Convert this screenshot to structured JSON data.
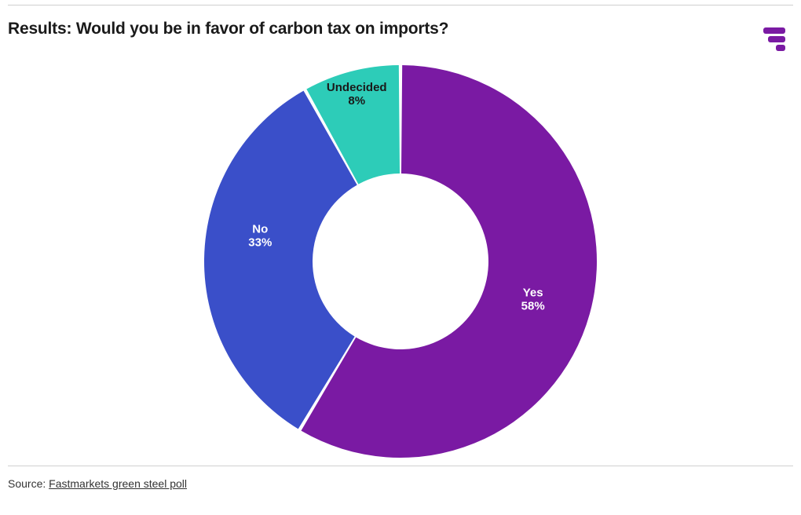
{
  "title": "Results: Would you be in favor of carbon tax on imports?",
  "chart": {
    "type": "donut",
    "start_angle_deg": 0,
    "outer_radius": 250,
    "inner_radius": 112,
    "gap_deg": 1.0,
    "background_color": "#ffffff",
    "slices": [
      {
        "label": "Yes",
        "value": 58,
        "color": "#7a1aa3",
        "text_color": "#ffffff",
        "label_offset_r": 175,
        "label_offset_angle_deg": 0
      },
      {
        "label": "No",
        "value": 33,
        "color": "#3a4fc9",
        "text_color": "#ffffff",
        "label_offset_r": 182,
        "label_offset_angle_deg": 10
      },
      {
        "label": "Undecided",
        "value": 8,
        "color": "#2dccb8",
        "text_color": "#1a1a1a",
        "label_offset_r": 222,
        "label_offset_angle_deg": 0
      }
    ],
    "label_fontsize": 15,
    "label_fontweight": 600,
    "pct_fontweight": 700
  },
  "logo": {
    "bars": [
      {
        "w": 28,
        "h": 8
      },
      {
        "w": 22,
        "h": 8
      },
      {
        "w": 12,
        "h": 8
      }
    ],
    "color": "#7a1aa3",
    "radius": 3,
    "gap": 3
  },
  "source": {
    "prefix": "Source: ",
    "text": "Fastmarkets green steel poll"
  },
  "rules_color": "#d0d0d0"
}
